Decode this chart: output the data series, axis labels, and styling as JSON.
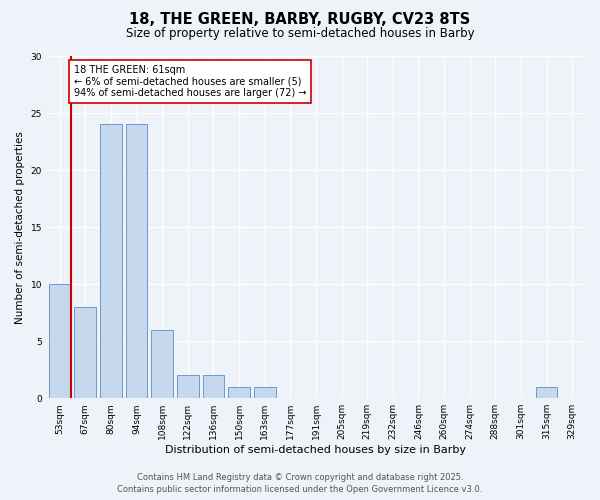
{
  "title1": "18, THE GREEN, BARBY, RUGBY, CV23 8TS",
  "title2": "Size of property relative to semi-detached houses in Barby",
  "xlabel": "Distribution of semi-detached houses by size in Barby",
  "ylabel": "Number of semi-detached properties",
  "categories": [
    "53sqm",
    "67sqm",
    "80sqm",
    "94sqm",
    "108sqm",
    "122sqm",
    "136sqm",
    "150sqm",
    "163sqm",
    "177sqm",
    "191sqm",
    "205sqm",
    "219sqm",
    "232sqm",
    "246sqm",
    "260sqm",
    "274sqm",
    "288sqm",
    "301sqm",
    "315sqm",
    "329sqm"
  ],
  "values": [
    10,
    8,
    24,
    24,
    6,
    2,
    2,
    1,
    1,
    0,
    0,
    0,
    0,
    0,
    0,
    0,
    0,
    0,
    0,
    1,
    0
  ],
  "bar_color": "#c5d8ed",
  "bar_edge_color": "#5b8ec4",
  "annotation_title": "18 THE GREEN: 61sqm",
  "annotation_line1": "← 6% of semi-detached houses are smaller (5)",
  "annotation_line2": "94% of semi-detached houses are larger (72) →",
  "annotation_box_color": "#ffffff",
  "annotation_box_edge": "#cc0000",
  "red_line_color": "#cc0000",
  "ylim": [
    0,
    30
  ],
  "yticks": [
    0,
    5,
    10,
    15,
    20,
    25,
    30
  ],
  "footer1": "Contains HM Land Registry data © Crown copyright and database right 2025.",
  "footer2": "Contains public sector information licensed under the Open Government Licence v3.0.",
  "bg_color": "#eef2f9",
  "grid_color": "#ffffff",
  "title1_fontsize": 10.5,
  "title2_fontsize": 8.5,
  "xlabel_fontsize": 8,
  "ylabel_fontsize": 7.5,
  "tick_fontsize": 6.5,
  "annotation_fontsize": 7,
  "footer_fontsize": 6
}
